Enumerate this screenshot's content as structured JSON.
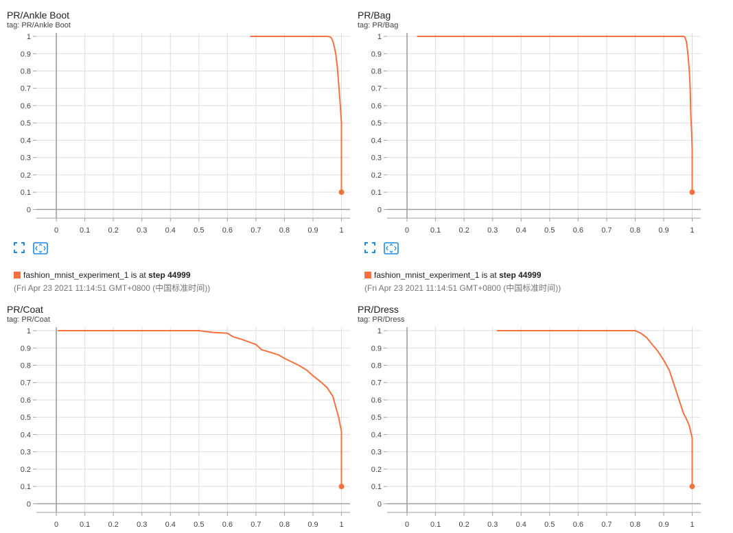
{
  "colors": {
    "series": "#f4703f",
    "grid": "#dddddd",
    "axis": "#9e9e9e",
    "icon": "#1e88e5"
  },
  "icons": {
    "expand": "fullscreen-icon",
    "fit": "fit-domain-icon"
  },
  "charts": [
    {
      "title": "PR/Ankle Boot",
      "tag": "tag: PR/Ankle Boot",
      "run": {
        "name": "fashion_mnist_experiment_1",
        "status_text": " is at ",
        "step_label": "step 44999",
        "timestamp": "(Fri Apr 23 2021 11:14:51 GMT+0800 (中国标准时间))"
      }
    },
    {
      "title": "PR/Bag",
      "tag": "tag: PR/Bag",
      "run": {
        "name": "fashion_mnist_experiment_1",
        "status_text": " is at ",
        "step_label": "step 44999",
        "timestamp": "(Fri Apr 23 2021 11:14:51 GMT+0800 (中国标准时间))"
      }
    },
    {
      "title": "PR/Coat",
      "tag": "tag: PR/Coat"
    },
    {
      "title": "PR/Dress",
      "tag": "tag: PR/Dress"
    }
  ],
  "chart_data": [
    {
      "type": "line",
      "title": "PR/Ankle Boot",
      "xlabel": "",
      "ylabel": "",
      "xlim": [
        -0.07,
        1.03
      ],
      "ylim": [
        -0.05,
        1.02
      ],
      "xticks": [
        "0",
        "0.1",
        "0.2",
        "0.3",
        "0.4",
        "0.5",
        "0.6",
        "0.7",
        "0.8",
        "0.9",
        "1"
      ],
      "yticks": [
        "0",
        "0.1",
        "0.2",
        "0.3",
        "0.4",
        "0.5",
        "0.6",
        "0.7",
        "0.8",
        "0.9",
        "1"
      ],
      "grid": true,
      "series": [
        {
          "x": [
            0.68,
            0.95,
            0.96,
            0.965,
            0.97,
            0.975,
            0.98,
            0.985,
            0.99,
            0.995,
            1.0,
            1.0
          ],
          "y": [
            1.0,
            1.0,
            0.998,
            0.99,
            0.97,
            0.94,
            0.9,
            0.83,
            0.73,
            0.62,
            0.5,
            0.1
          ]
        }
      ],
      "end_marker": [
        1.0,
        0.1
      ]
    },
    {
      "type": "line",
      "title": "PR/Bag",
      "xlabel": "",
      "ylabel": "",
      "xlim": [
        -0.07,
        1.03
      ],
      "ylim": [
        -0.05,
        1.02
      ],
      "xticks": [
        "0",
        "0.1",
        "0.2",
        "0.3",
        "0.4",
        "0.5",
        "0.6",
        "0.7",
        "0.8",
        "0.9",
        "1"
      ],
      "yticks": [
        "0",
        "0.1",
        "0.2",
        "0.3",
        "0.4",
        "0.5",
        "0.6",
        "0.7",
        "0.8",
        "0.9",
        "1"
      ],
      "grid": true,
      "series": [
        {
          "x": [
            0.035,
            0.97,
            0.975,
            0.98,
            0.985,
            0.99,
            0.993,
            0.995,
            0.998,
            1.0,
            1.0
          ],
          "y": [
            1.0,
            1.0,
            0.995,
            0.97,
            0.9,
            0.8,
            0.7,
            0.55,
            0.45,
            0.35,
            0.1
          ]
        }
      ],
      "end_marker": [
        1.0,
        0.1
      ]
    },
    {
      "type": "line",
      "title": "PR/Coat",
      "xlabel": "",
      "ylabel": "",
      "xlim": [
        -0.07,
        1.03
      ],
      "ylim": [
        -0.05,
        1.02
      ],
      "xticks": [
        "0",
        "0.1",
        "0.2",
        "0.3",
        "0.4",
        "0.5",
        "0.6",
        "0.7",
        "0.8",
        "0.9",
        "1"
      ],
      "yticks": [
        "0",
        "0.1",
        "0.2",
        "0.3",
        "0.4",
        "0.5",
        "0.6",
        "0.7",
        "0.8",
        "0.9",
        "1"
      ],
      "grid": true,
      "series": [
        {
          "x": [
            0.005,
            0.5,
            0.55,
            0.6,
            0.62,
            0.65,
            0.7,
            0.72,
            0.75,
            0.78,
            0.8,
            0.85,
            0.88,
            0.9,
            0.93,
            0.95,
            0.97,
            0.98,
            0.99,
            1.0,
            1.0
          ],
          "y": [
            1.0,
            1.0,
            0.99,
            0.985,
            0.965,
            0.95,
            0.92,
            0.89,
            0.875,
            0.86,
            0.84,
            0.8,
            0.77,
            0.74,
            0.7,
            0.67,
            0.62,
            0.56,
            0.5,
            0.42,
            0.1
          ]
        }
      ],
      "end_marker": [
        1.0,
        0.1
      ]
    },
    {
      "type": "line",
      "title": "PR/Dress",
      "xlabel": "",
      "ylabel": "",
      "xlim": [
        -0.07,
        1.03
      ],
      "ylim": [
        -0.05,
        1.02
      ],
      "xticks": [
        "0",
        "0.1",
        "0.2",
        "0.3",
        "0.4",
        "0.5",
        "0.6",
        "0.7",
        "0.8",
        "0.9",
        "1"
      ],
      "yticks": [
        "0",
        "0.1",
        "0.2",
        "0.3",
        "0.4",
        "0.5",
        "0.6",
        "0.7",
        "0.8",
        "0.9",
        "1"
      ],
      "grid": true,
      "series": [
        {
          "x": [
            0.315,
            0.8,
            0.82,
            0.84,
            0.86,
            0.88,
            0.9,
            0.92,
            0.93,
            0.94,
            0.95,
            0.96,
            0.97,
            0.98,
            0.99,
            1.0,
            1.0
          ],
          "y": [
            1.0,
            1.0,
            0.985,
            0.96,
            0.92,
            0.88,
            0.83,
            0.77,
            0.72,
            0.67,
            0.62,
            0.57,
            0.52,
            0.49,
            0.45,
            0.38,
            0.1
          ]
        }
      ],
      "end_marker": [
        1.0,
        0.1
      ]
    }
  ]
}
